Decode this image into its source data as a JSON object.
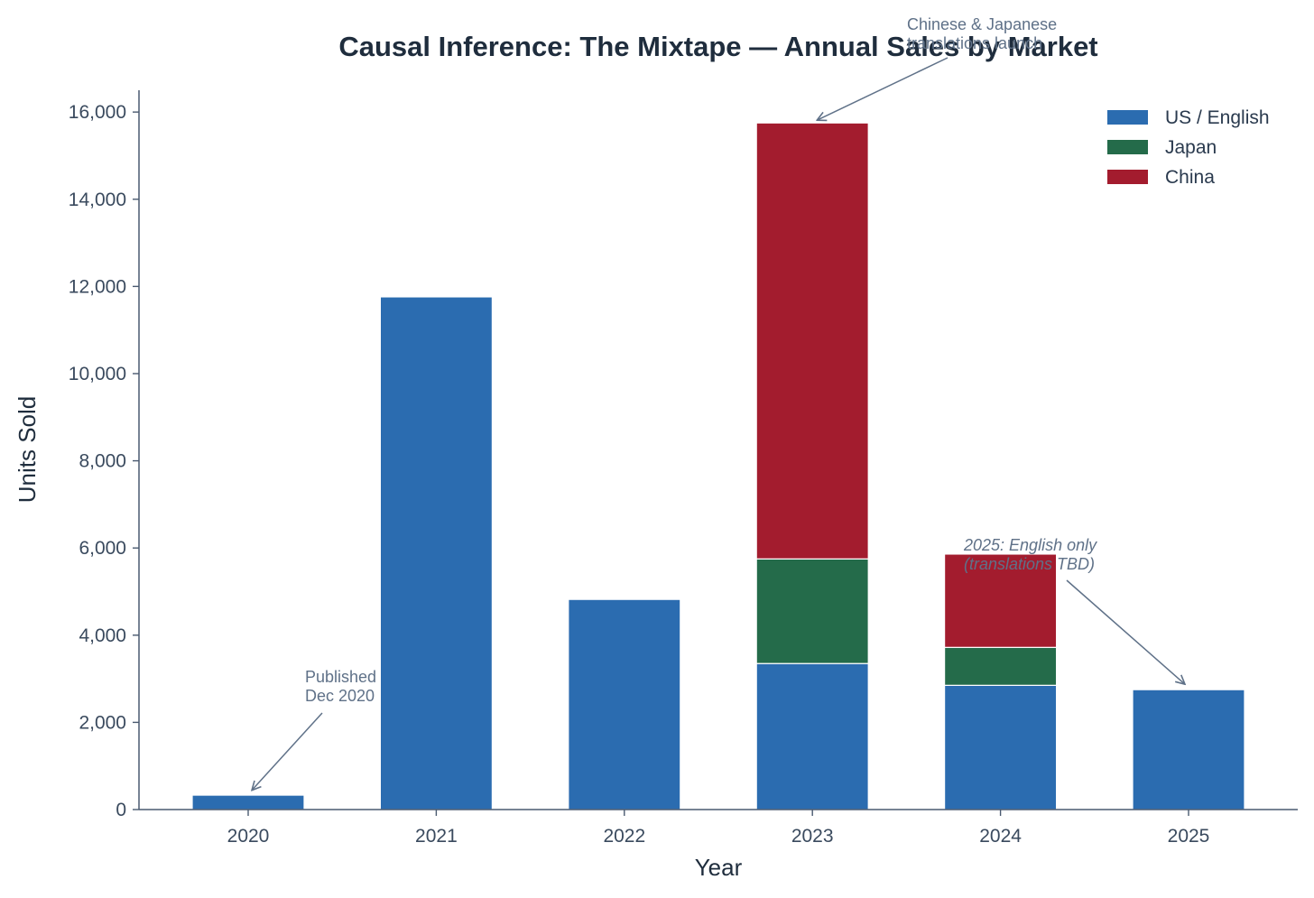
{
  "chart_data": {
    "type": "bar",
    "stacked": true,
    "title": "Causal Inference: The Mixtape — Annual Sales by Market",
    "xlabel": "Year",
    "ylabel": "Units Sold",
    "categories": [
      "2020",
      "2021",
      "2022",
      "2023",
      "2024",
      "2025"
    ],
    "ylim": [
      0,
      16500
    ],
    "yticks": [
      0,
      2000,
      4000,
      6000,
      8000,
      10000,
      12000,
      14000,
      16000
    ],
    "ytick_labels": [
      "0",
      "2,000",
      "4,000",
      "6,000",
      "8,000",
      "10,000",
      "12,000",
      "14,000",
      "16,000"
    ],
    "legend_position": "top-right",
    "grid": false,
    "series": [
      {
        "name": "US / English",
        "color": "#2b6cb0",
        "values": [
          330,
          11760,
          4820,
          3350,
          2850,
          2750
        ]
      },
      {
        "name": "Japan",
        "color": "#246b4a",
        "values": [
          0,
          0,
          0,
          2400,
          870,
          0
        ]
      },
      {
        "name": "China",
        "color": "#a31c2e",
        "values": [
          0,
          0,
          0,
          10000,
          2140,
          0
        ]
      }
    ],
    "annotations": [
      {
        "id": "published",
        "lines": [
          "Published",
          "Dec 2020"
        ],
        "italic": false,
        "category": "2020",
        "value": 400
      },
      {
        "id": "translations",
        "lines": [
          "Chinese & Japanese",
          "translations launch"
        ],
        "italic": false,
        "category": "2023",
        "value": 15800
      },
      {
        "id": "english-only",
        "lines": [
          "2025: English only",
          "(translations TBD)"
        ],
        "italic": true,
        "category": "2025",
        "value": 2850
      }
    ]
  }
}
